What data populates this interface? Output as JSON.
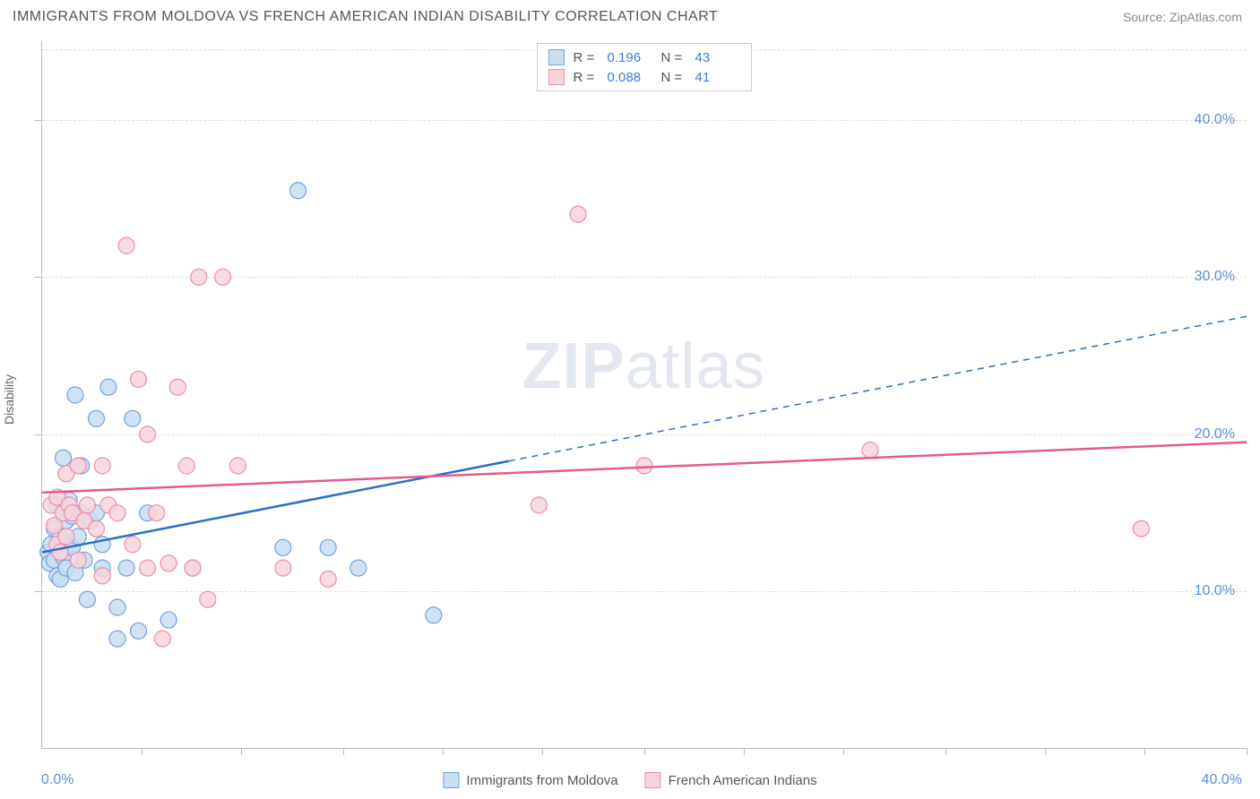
{
  "header": {
    "title": "IMMIGRANTS FROM MOLDOVA VS FRENCH AMERICAN INDIAN DISABILITY CORRELATION CHART",
    "source": "Source: ZipAtlas.com"
  },
  "chart": {
    "type": "scatter",
    "y_axis_label": "Disability",
    "x_min": 0,
    "x_max": 40,
    "y_min": 0,
    "y_max": 45,
    "x_tick_start_label": "0.0%",
    "x_tick_end_label": "40.0%",
    "x_tick_positions": [
      3.3,
      6.6,
      10,
      13.3,
      16.6,
      20,
      23.3,
      26.6,
      30,
      33.3,
      36.6,
      40
    ],
    "y_ticks": [
      {
        "val": 10,
        "label": "10.0%"
      },
      {
        "val": 20,
        "label": "20.0%"
      },
      {
        "val": 30,
        "label": "30.0%"
      },
      {
        "val": 40,
        "label": "40.0%"
      }
    ],
    "grid_y": [
      10,
      20,
      30,
      40,
      44.5
    ],
    "background_color": "#ffffff",
    "grid_color": "#dddddd",
    "axis_color": "#bbbbbb",
    "marker_radius": 9,
    "marker_stroke_width": 1.2,
    "trend_line_width": 2.5,
    "watermark": {
      "zip": "ZIP",
      "atlas": "atlas"
    }
  },
  "series": [
    {
      "name": "Immigrants from Moldova",
      "fill": "#c9ddf3",
      "stroke": "#6fa3dd",
      "line_color": "#2b6fc7",
      "R": "0.196",
      "N": "43",
      "trend": {
        "x1": 0,
        "y1": 12.5,
        "x2_solid": 15.5,
        "y2_solid": 18.3,
        "x2_dash": 40,
        "y2_dash": 27.5
      },
      "points": [
        [
          0.2,
          12.5
        ],
        [
          0.25,
          11.8
        ],
        [
          0.3,
          13.0
        ],
        [
          0.4,
          14.0
        ],
        [
          0.4,
          12.0
        ],
        [
          0.5,
          11.0
        ],
        [
          0.5,
          15.5
        ],
        [
          0.6,
          10.8
        ],
        [
          0.6,
          13.5
        ],
        [
          0.7,
          12.2
        ],
        [
          0.7,
          18.5
        ],
        [
          0.8,
          14.5
        ],
        [
          0.8,
          11.5
        ],
        [
          0.9,
          13.0
        ],
        [
          0.9,
          15.8
        ],
        [
          1.0,
          12.8
        ],
        [
          1.0,
          14.8
        ],
        [
          1.1,
          11.2
        ],
        [
          1.1,
          22.5
        ],
        [
          1.2,
          13.5
        ],
        [
          1.3,
          15.0
        ],
        [
          1.3,
          18.0
        ],
        [
          1.4,
          12.0
        ],
        [
          1.5,
          9.5
        ],
        [
          1.6,
          14.5
        ],
        [
          1.8,
          15.0
        ],
        [
          1.8,
          21.0
        ],
        [
          2.0,
          11.5
        ],
        [
          2.0,
          13.0
        ],
        [
          2.2,
          23.0
        ],
        [
          2.5,
          9.0
        ],
        [
          2.5,
          7.0
        ],
        [
          2.8,
          11.5
        ],
        [
          3.0,
          21.0
        ],
        [
          3.2,
          7.5
        ],
        [
          3.5,
          15.0
        ],
        [
          4.2,
          8.2
        ],
        [
          5.0,
          11.5
        ],
        [
          8.0,
          12.8
        ],
        [
          8.5,
          35.5
        ],
        [
          9.5,
          12.8
        ],
        [
          10.5,
          11.5
        ],
        [
          13.0,
          8.5
        ]
      ]
    },
    {
      "name": "French American Indians",
      "fill": "#f7d3dc",
      "stroke": "#e98fa8",
      "line_color": "#e65a88",
      "R": "0.088",
      "N": "41",
      "trend": {
        "x1": 0,
        "y1": 16.3,
        "x2_solid": 40,
        "y2_solid": 19.5,
        "x2_dash": 40,
        "y2_dash": 19.5
      },
      "points": [
        [
          0.3,
          15.5
        ],
        [
          0.4,
          14.2
        ],
        [
          0.5,
          16.0
        ],
        [
          0.5,
          13.0
        ],
        [
          0.6,
          12.5
        ],
        [
          0.7,
          15.0
        ],
        [
          0.8,
          17.5
        ],
        [
          0.8,
          13.5
        ],
        [
          0.9,
          15.5
        ],
        [
          1.0,
          15.0
        ],
        [
          1.2,
          18.0
        ],
        [
          1.2,
          12.0
        ],
        [
          1.4,
          14.5
        ],
        [
          1.5,
          15.5
        ],
        [
          1.8,
          14.0
        ],
        [
          2.0,
          18.0
        ],
        [
          2.0,
          11.0
        ],
        [
          2.2,
          15.5
        ],
        [
          2.5,
          15.0
        ],
        [
          2.8,
          32.0
        ],
        [
          3.0,
          13.0
        ],
        [
          3.2,
          23.5
        ],
        [
          3.5,
          20.0
        ],
        [
          3.5,
          11.5
        ],
        [
          3.8,
          15.0
        ],
        [
          4.0,
          7.0
        ],
        [
          4.2,
          11.8
        ],
        [
          4.5,
          23.0
        ],
        [
          4.8,
          18.0
        ],
        [
          5.0,
          11.5
        ],
        [
          5.2,
          30.0
        ],
        [
          5.5,
          9.5
        ],
        [
          6.0,
          30.0
        ],
        [
          6.5,
          18.0
        ],
        [
          8.0,
          11.5
        ],
        [
          9.5,
          10.8
        ],
        [
          16.5,
          15.5
        ],
        [
          17.8,
          34.0
        ],
        [
          20.0,
          18.0
        ],
        [
          27.5,
          19.0
        ],
        [
          36.5,
          14.0
        ]
      ]
    }
  ],
  "legend_labels": {
    "R": "R =",
    "N": "N ="
  },
  "bottom_legend": {
    "series1": "Immigrants from Moldova",
    "series2": "French American Indians"
  }
}
